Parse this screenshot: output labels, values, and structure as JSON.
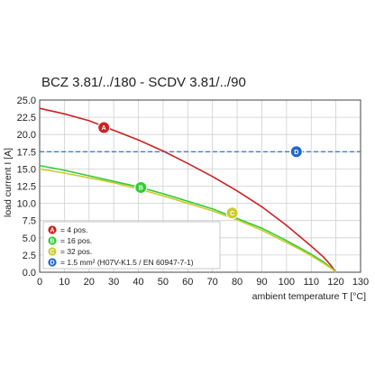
{
  "chart_data": {
    "type": "line",
    "title": "BCZ 3.81/../180 - SCDV 3.81/../90",
    "xlabel": "ambient temperature T [°C]",
    "ylabel": "load current I [A]",
    "xlim": [
      0,
      130
    ],
    "ylim": [
      0,
      25
    ],
    "x_ticks": [
      "0",
      "10",
      "20",
      "30",
      "40",
      "50",
      "60",
      "70",
      "80",
      "90",
      "100",
      "110",
      "120",
      "130"
    ],
    "y_ticks": [
      "0.0",
      "2.5",
      "5.0",
      "7.5",
      "10.0",
      "12.5",
      "15.0",
      "17.5",
      "20.0",
      "22.5",
      "25.0"
    ],
    "grid": true,
    "series": [
      {
        "marker": "A",
        "name": "= 4 pos.",
        "color": "#cc2222",
        "x": [
          0,
          10,
          20,
          30,
          40,
          50,
          60,
          70,
          80,
          90,
          100,
          105,
          110,
          115,
          118,
          120
        ],
        "y": [
          23.8,
          23.0,
          22.0,
          20.6,
          19.2,
          17.6,
          15.8,
          13.9,
          11.8,
          9.5,
          6.8,
          5.3,
          3.8,
          2.2,
          1.0,
          0.0
        ]
      },
      {
        "marker": "B",
        "name": "= 16 pos.",
        "color": "#33cc33",
        "x": [
          0,
          10,
          20,
          30,
          40,
          50,
          60,
          70,
          80,
          90,
          100,
          105,
          110,
          115,
          118,
          120
        ],
        "y": [
          15.5,
          14.8,
          14.0,
          13.2,
          12.4,
          11.4,
          10.3,
          9.2,
          7.8,
          6.4,
          4.6,
          3.6,
          2.6,
          1.5,
          0.7,
          0.0
        ]
      },
      {
        "marker": "C",
        "name": "= 32 pos.",
        "color": "#cccc33",
        "x": [
          0,
          10,
          20,
          30,
          40,
          50,
          60,
          70,
          80,
          90,
          100,
          105,
          110,
          115,
          118,
          120
        ],
        "y": [
          15.0,
          14.4,
          13.7,
          13.0,
          12.1,
          11.1,
          10.0,
          8.9,
          7.6,
          6.1,
          4.3,
          3.4,
          2.4,
          1.3,
          0.6,
          0.0
        ]
      },
      {
        "marker": "D",
        "name": "= 1.5 mm² (H07V-K1.5 / EN 60947-7-1)",
        "color": "#2266cc",
        "dashed": true,
        "x": [
          0,
          130
        ],
        "y": [
          17.5,
          17.5
        ]
      }
    ],
    "markers": [
      {
        "label": "A",
        "x": 26,
        "y": 21.0,
        "color": "#cc2222"
      },
      {
        "label": "B",
        "x": 41,
        "y": 12.3,
        "color": "#33cc33"
      },
      {
        "label": "C",
        "x": 78,
        "y": 8.6,
        "color": "#cccc33"
      },
      {
        "label": "D",
        "x": 104,
        "y": 17.5,
        "color": "#2266cc"
      }
    ]
  }
}
